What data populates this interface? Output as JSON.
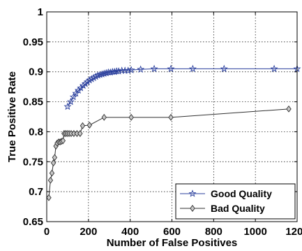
{
  "chart_data": {
    "type": "line",
    "title": "",
    "xlabel": "Number of False Positives",
    "ylabel": "True Positive Rate",
    "xlim": [
      0,
      1200
    ],
    "ylim": [
      0.65,
      1
    ],
    "x_ticks": [
      0,
      200,
      400,
      600,
      800,
      1000,
      1200
    ],
    "y_ticks": [
      0.65,
      0.7,
      0.75,
      0.8,
      0.85,
      0.9,
      0.95,
      1
    ],
    "x_tick_labels": [
      "0",
      "200",
      "400",
      "600",
      "800",
      "1000",
      "1200"
    ],
    "y_tick_labels": [
      "0.65",
      "0.7",
      "0.75",
      "0.8",
      "0.85",
      "0.9",
      "0.95",
      "1"
    ],
    "grid": true,
    "legend_position": "bottom-right",
    "series": [
      {
        "name": "Good Quality",
        "color": "#2a3f9d",
        "marker": "star",
        "points": [
          [
            100,
            0.842
          ],
          [
            115,
            0.85
          ],
          [
            128,
            0.858
          ],
          [
            140,
            0.864
          ],
          [
            152,
            0.869
          ],
          [
            163,
            0.873
          ],
          [
            175,
            0.877
          ],
          [
            185,
            0.88
          ],
          [
            195,
            0.883
          ],
          [
            205,
            0.886
          ],
          [
            215,
            0.888
          ],
          [
            225,
            0.89
          ],
          [
            235,
            0.892
          ],
          [
            245,
            0.894
          ],
          [
            255,
            0.895
          ],
          [
            265,
            0.896
          ],
          [
            275,
            0.897
          ],
          [
            285,
            0.898
          ],
          [
            295,
            0.899
          ],
          [
            305,
            0.899
          ],
          [
            315,
            0.9
          ],
          [
            325,
            0.9
          ],
          [
            335,
            0.901
          ],
          [
            345,
            0.901
          ],
          [
            360,
            0.902
          ],
          [
            375,
            0.902
          ],
          [
            390,
            0.902
          ],
          [
            405,
            0.903
          ],
          [
            450,
            0.904
          ],
          [
            515,
            0.905
          ],
          [
            595,
            0.905
          ],
          [
            700,
            0.905
          ],
          [
            850,
            0.905
          ],
          [
            1090,
            0.905
          ],
          [
            1200,
            0.905
          ]
        ]
      },
      {
        "name": "Bad Quality",
        "color": "#303030",
        "marker": "diamond",
        "points": [
          [
            10,
            0.69
          ],
          [
            18,
            0.719
          ],
          [
            25,
            0.731
          ],
          [
            32,
            0.748
          ],
          [
            38,
            0.757
          ],
          [
            44,
            0.776
          ],
          [
            50,
            0.781
          ],
          [
            57,
            0.783
          ],
          [
            64,
            0.783
          ],
          [
            71,
            0.784
          ],
          [
            78,
            0.785
          ],
          [
            83,
            0.797
          ],
          [
            90,
            0.797
          ],
          [
            98,
            0.797
          ],
          [
            107,
            0.797
          ],
          [
            117,
            0.797
          ],
          [
            130,
            0.797
          ],
          [
            145,
            0.797
          ],
          [
            160,
            0.797
          ],
          [
            172,
            0.81
          ],
          [
            205,
            0.811
          ],
          [
            275,
            0.824
          ],
          [
            405,
            0.824
          ],
          [
            595,
            0.824
          ],
          [
            1160,
            0.838
          ]
        ]
      }
    ]
  }
}
